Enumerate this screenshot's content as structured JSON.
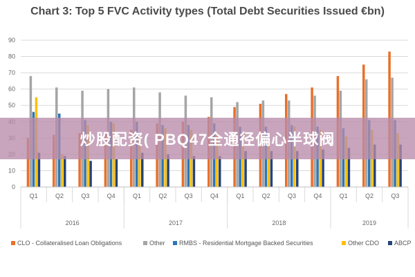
{
  "chart_data": {
    "type": "bar",
    "title": "Chart 3: Top 5 FVC Activity types (Total Debt Securities Issued €bn)",
    "ylim": [
      0,
      90
    ],
    "yticks": [
      0,
      10,
      20,
      30,
      40,
      50,
      60,
      70,
      80,
      90
    ],
    "grid": true,
    "legend_position": "bottom",
    "categories": [
      "Q1",
      "Q2",
      "Q3",
      "Q4",
      "Q1",
      "Q2",
      "Q3",
      "Q4",
      "Q1",
      "Q2",
      "Q3",
      "Q4",
      "Q1",
      "Q2",
      "Q3"
    ],
    "year_groups": [
      {
        "label": "2016",
        "count": 4
      },
      {
        "label": "2017",
        "count": 4
      },
      {
        "label": "2018",
        "count": 4
      },
      {
        "label": "2019",
        "count": 3
      }
    ],
    "series": [
      {
        "name": "CLO - Collateralised Loan Obligations",
        "color": "#e8702a",
        "values": [
          30,
          32,
          33,
          33,
          35,
          39,
          40,
          43,
          49,
          51,
          57,
          61,
          68,
          75,
          83
        ]
      },
      {
        "name": "Other",
        "color": "#a5a5a5",
        "values": [
          68,
          61,
          59,
          60,
          61,
          58,
          56,
          55,
          52,
          53,
          53,
          56,
          59,
          66,
          67
        ]
      },
      {
        "name": "RMBS - Residential Mortgage Backed Securities",
        "color": "#2e75b6",
        "values": [
          46,
          45,
          41,
          40,
          40,
          38,
          38,
          39,
          37,
          37,
          38,
          37,
          36,
          41,
          41
        ]
      },
      {
        "name": "Other CDO",
        "color": "#ffc000",
        "values": [
          55,
          20,
          38,
          39,
          31,
          36,
          35,
          33,
          33,
          27,
          37,
          35,
          31,
          35,
          33
        ]
      },
      {
        "name": "ABCP",
        "color": "#264478",
        "values": [
          21,
          19,
          16,
          17,
          21,
          20,
          19,
          19,
          22,
          22,
          22,
          23,
          24,
          26,
          26
        ]
      }
    ]
  },
  "overlay": {
    "text": "炒股配资( PBQ47全通径偏心半球阀"
  }
}
